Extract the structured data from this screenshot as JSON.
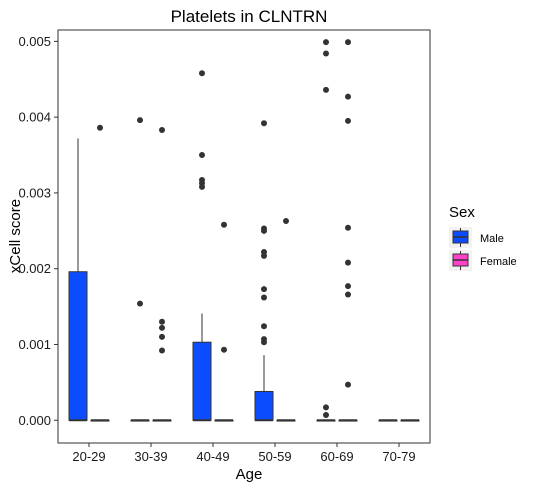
{
  "chart_data": {
    "type": "boxplot",
    "title": "Platelets in CLNTRN",
    "xlabel": "Age",
    "ylabel": "xCell score",
    "ylim": [
      -0.0003,
      0.00515
    ],
    "yticks": [
      "0.000",
      "0.001",
      "0.002",
      "0.003",
      "0.004",
      "0.005"
    ],
    "ytick_values": [
      0,
      0.001,
      0.002,
      0.003,
      0.004,
      0.005
    ],
    "categories": [
      "20-29",
      "30-39",
      "40-49",
      "50-59",
      "60-69",
      "70-79"
    ],
    "grid": false,
    "legend": {
      "title": "Sex",
      "position": "right",
      "entries": [
        {
          "label": "Male",
          "color": "#0c4cff"
        },
        {
          "label": "Female",
          "color": "#ff40c8"
        }
      ]
    },
    "series": [
      {
        "name": "Male",
        "color": "#0c4cff",
        "boxes": [
          {
            "category": "20-29",
            "min": 0,
            "q1": 0,
            "median": 0,
            "q3": 0.00196,
            "max": 0.00372,
            "outliers": []
          },
          {
            "category": "30-39",
            "min": 0,
            "q1": 0,
            "median": 0,
            "q3": 0,
            "max": 0,
            "outliers": [
              0.00154,
              0.00396
            ]
          },
          {
            "category": "40-49",
            "min": 0,
            "q1": 0,
            "median": 0,
            "q3": 0.00103,
            "max": 0.00141,
            "outliers": [
              0.00458,
              0.0035,
              0.00317,
              0.00313,
              0.00308
            ]
          },
          {
            "category": "50-59",
            "min": 0,
            "q1": 0,
            "median": 0,
            "q3": 0.00038,
            "max": 0.00086,
            "outliers": [
              0.00392,
              0.00253,
              0.0025,
              0.00222,
              0.00217,
              0.00173,
              0.00162,
              0.00124,
              0.00107,
              0.00103
            ]
          },
          {
            "category": "60-69",
            "min": 0,
            "q1": 0,
            "median": 0,
            "q3": 0,
            "max": 0,
            "outliers": [
              0.00499,
              0.00484,
              0.00436,
              0.00017,
              7e-05
            ]
          },
          {
            "category": "70-79",
            "min": 0,
            "q1": 0,
            "median": 0,
            "q3": 0,
            "max": 0,
            "outliers": []
          }
        ]
      },
      {
        "name": "Female",
        "color": "#ff40c8",
        "boxes": [
          {
            "category": "20-29",
            "min": 0,
            "q1": 0,
            "median": 0,
            "q3": 0,
            "max": 0,
            "outliers": [
              0.00386
            ]
          },
          {
            "category": "30-39",
            "min": 0,
            "q1": 0,
            "median": 0,
            "q3": 0,
            "max": 0,
            "outliers": [
              0.00383,
              0.0013,
              0.00122,
              0.0011,
              0.00092
            ]
          },
          {
            "category": "40-49",
            "min": 0,
            "q1": 0,
            "median": 0,
            "q3": 0,
            "max": 0,
            "outliers": [
              0.00258,
              0.00093
            ]
          },
          {
            "category": "50-59",
            "min": 0,
            "q1": 0,
            "median": 0,
            "q3": 0,
            "max": 0,
            "outliers": [
              0.00263
            ]
          },
          {
            "category": "60-69",
            "min": 0,
            "q1": 0,
            "median": 0,
            "q3": 0,
            "max": 0,
            "outliers": [
              0.00499,
              0.00427,
              0.00395,
              0.00254,
              0.00208,
              0.00177,
              0.00166,
              0.00047
            ]
          },
          {
            "category": "70-79",
            "min": 0,
            "q1": 0,
            "median": 0,
            "q3": 0,
            "max": 0,
            "outliers": []
          }
        ]
      }
    ]
  }
}
